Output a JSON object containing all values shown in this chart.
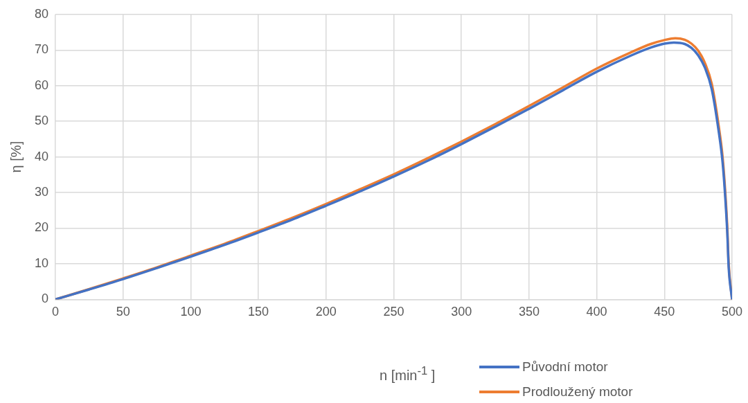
{
  "chart_data": {
    "type": "line",
    "xlabel": "n [min$^{-1}$ ]",
    "ylabel": "η [%]",
    "xlim": [
      0,
      500
    ],
    "xticks": [
      0,
      50,
      100,
      150,
      200,
      250,
      300,
      350,
      400,
      450,
      500
    ],
    "ylim": [
      0,
      80
    ],
    "yticks": [
      0,
      10,
      20,
      30,
      40,
      50,
      60,
      70,
      80
    ],
    "grid": true,
    "legend": "bottom right",
    "marker": "none",
    "line_style": "solid",
    "series": [
      {
        "name": "Původní motor",
        "color": "#4472c4",
        "x": [
          0,
          25,
          50,
          75,
          100,
          125,
          150,
          175,
          200,
          225,
          250,
          275,
          300,
          325,
          350,
          375,
          400,
          425,
          440,
          450,
          457,
          465,
          470,
          475,
          480,
          485,
          490,
          493,
          495,
          496.5,
          497.5,
          500
        ],
        "values": [
          0,
          2.8,
          5.7,
          8.8,
          12,
          15.3,
          18.8,
          22.4,
          26.3,
          30.3,
          34.5,
          38.9,
          43.6,
          48.5,
          53.5,
          58.7,
          63.9,
          68.4,
          70.7,
          71.8,
          72.1,
          71.7,
          70.6,
          68.5,
          65,
          59,
          47.5,
          38.5,
          28.5,
          18.5,
          9,
          0
        ]
      },
      {
        "name": "Prodloužený motor",
        "color": "#ed7d31",
        "x": [
          0,
          25,
          50,
          75,
          100,
          125,
          150,
          175,
          200,
          225,
          250,
          275,
          300,
          325,
          350,
          375,
          400,
          425,
          440,
          450,
          458,
          465,
          470,
          475,
          480,
          485,
          490,
          493,
          495,
          496.5,
          497.5,
          500
        ],
        "values": [
          0,
          2.9,
          5.9,
          9,
          12.3,
          15.6,
          19.2,
          22.9,
          26.8,
          30.9,
          35.1,
          39.6,
          44.3,
          49.2,
          54.3,
          59.5,
          64.8,
          69.3,
          71.7,
          72.8,
          73.3,
          72.9,
          71.8,
          69.8,
          66.3,
          60.5,
          49,
          40,
          30,
          20,
          10,
          0
        ]
      }
    ]
  }
}
